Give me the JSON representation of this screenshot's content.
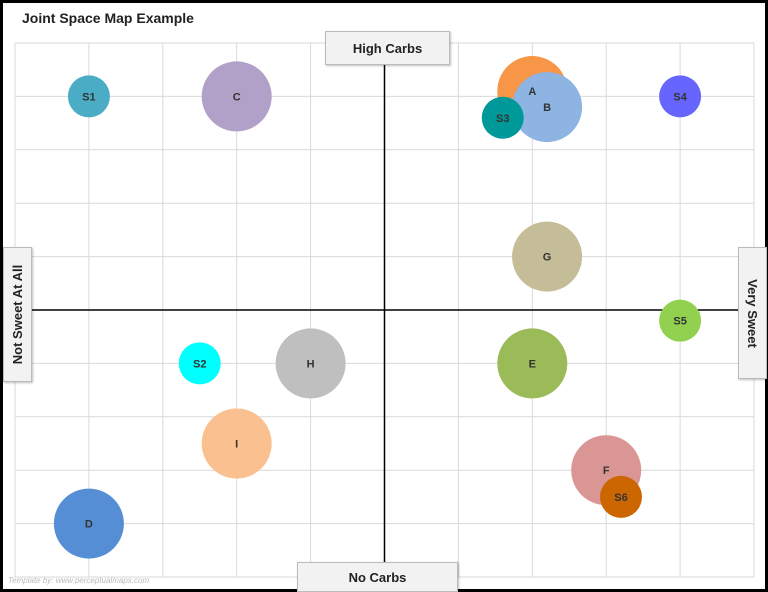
{
  "chart_data": {
    "type": "scatter",
    "title": "Joint Space Map Example",
    "axis_labels": {
      "top": "High Carbs",
      "bottom": "No Carbs",
      "left": "Not Sweet At All",
      "right": "Very Sweet"
    },
    "xlim": [
      -5,
      5
    ],
    "ylim": [
      -5,
      5
    ],
    "grid": true,
    "points": [
      {
        "label": "S1",
        "x": -4,
        "y": 4,
        "size": "small",
        "color": "#4bacc6"
      },
      {
        "label": "C",
        "x": -2,
        "y": 4,
        "size": "large",
        "color": "#b1a0c7"
      },
      {
        "label": "A",
        "x": 2,
        "y": 4.1,
        "size": "large",
        "color": "#f79646"
      },
      {
        "label": "B",
        "x": 2.2,
        "y": 3.8,
        "size": "large",
        "color": "#8db4e2"
      },
      {
        "label": "S3",
        "x": 1.6,
        "y": 3.6,
        "size": "small",
        "color": "#009999"
      },
      {
        "label": "S4",
        "x": 4,
        "y": 4,
        "size": "small",
        "color": "#6666ff"
      },
      {
        "label": "G",
        "x": 2.2,
        "y": 1,
        "size": "large",
        "color": "#c4bd97"
      },
      {
        "label": "S5",
        "x": 4,
        "y": -0.2,
        "size": "small",
        "color": "#92d050"
      },
      {
        "label": "S2",
        "x": -2.5,
        "y": -1,
        "size": "small",
        "color": "#00ffff"
      },
      {
        "label": "H",
        "x": -1,
        "y": -1,
        "size": "large",
        "color": "#bfbfbf"
      },
      {
        "label": "E",
        "x": 2,
        "y": -1,
        "size": "large",
        "color": "#9bbb59"
      },
      {
        "label": "I",
        "x": -2,
        "y": -2.5,
        "size": "large",
        "color": "#fac090"
      },
      {
        "label": "F",
        "x": 3,
        "y": -3,
        "size": "large",
        "color": "#d99694"
      },
      {
        "label": "S6",
        "x": 3.2,
        "y": -3.5,
        "size": "small",
        "color": "#cc6600"
      },
      {
        "label": "D",
        "x": -4,
        "y": -4,
        "size": "large",
        "color": "#558ed5"
      }
    ],
    "watermark": "Template by: www.perceptualmaps.com"
  }
}
